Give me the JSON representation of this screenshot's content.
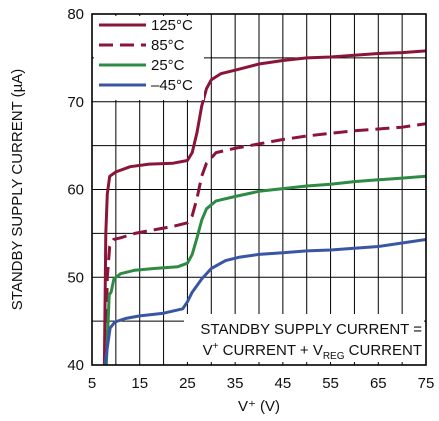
{
  "chart_data": {
    "type": "line",
    "xlabel": "V⁺ (V)",
    "ylabel": "STANDBY SUPPLY CURRENT (µA)",
    "xlim": [
      5,
      75
    ],
    "ylim": [
      40,
      80
    ],
    "xticks": [
      "5",
      "15",
      "25",
      "35",
      "45",
      "55",
      "65",
      "75"
    ],
    "yticks": [
      "40",
      "50",
      "60",
      "70",
      "80"
    ],
    "grid": true,
    "legend_position": "top-left",
    "annotation": {
      "line1": "STANDBY SUPPLY CURRENT =",
      "line2_part1": "V",
      "line2_sup": "+",
      "line2_part2": " CURRENT + V",
      "line2_sub": "REG",
      "line2_part3": " CURRENT"
    },
    "series": [
      {
        "name": "125°C",
        "color": "#8b1538",
        "dash": "solid",
        "points": [
          [
            7.6,
            40
          ],
          [
            7.9,
            55
          ],
          [
            8.2,
            59.5
          ],
          [
            8.7,
            61.5
          ],
          [
            10,
            62
          ],
          [
            13,
            62.6
          ],
          [
            17,
            62.9
          ],
          [
            22,
            63.0
          ],
          [
            25,
            63.3
          ],
          [
            26,
            64.2
          ],
          [
            27,
            66.5
          ],
          [
            28,
            69.5
          ],
          [
            29,
            71.5
          ],
          [
            30,
            72.5
          ],
          [
            32,
            73.2
          ],
          [
            35,
            73.6
          ],
          [
            40,
            74.3
          ],
          [
            45,
            74.7
          ],
          [
            50,
            75.0
          ],
          [
            55,
            75.1
          ],
          [
            60,
            75.3
          ],
          [
            65,
            75.5
          ],
          [
            70,
            75.6
          ],
          [
            75,
            75.8
          ]
        ]
      },
      {
        "name": "85°C",
        "color": "#8b1538",
        "dash": "dashed",
        "points": [
          [
            7.8,
            40
          ],
          [
            8.2,
            50
          ],
          [
            8.7,
            53.5
          ],
          [
            9.5,
            54.3
          ],
          [
            11,
            54.5
          ],
          [
            14,
            55.0
          ],
          [
            17,
            55.3
          ],
          [
            22,
            55.8
          ],
          [
            25,
            56.2
          ],
          [
            26,
            57.0
          ],
          [
            27,
            59.0
          ],
          [
            28,
            61.5
          ],
          [
            29,
            63.0
          ],
          [
            31,
            64.2
          ],
          [
            35,
            64.7
          ],
          [
            40,
            65.2
          ],
          [
            45,
            65.7
          ],
          [
            50,
            66.1
          ],
          [
            55,
            66.4
          ],
          [
            60,
            66.7
          ],
          [
            65,
            66.9
          ],
          [
            70,
            67.1
          ],
          [
            75,
            67.5
          ]
        ]
      },
      {
        "name": "25°C",
        "color": "#2e8b45",
        "dash": "solid",
        "points": [
          [
            8.0,
            40
          ],
          [
            8.6,
            48
          ],
          [
            9.0,
            48.3
          ],
          [
            9.6,
            49.8
          ],
          [
            11,
            50.4
          ],
          [
            14,
            50.8
          ],
          [
            18,
            51.0
          ],
          [
            23,
            51.2
          ],
          [
            25,
            51.6
          ],
          [
            26,
            52.6
          ],
          [
            27,
            54.5
          ],
          [
            28,
            56.5
          ],
          [
            29,
            57.8
          ],
          [
            31,
            58.7
          ],
          [
            35,
            59.2
          ],
          [
            40,
            59.8
          ],
          [
            45,
            60.1
          ],
          [
            50,
            60.4
          ],
          [
            55,
            60.6
          ],
          [
            60,
            60.9
          ],
          [
            65,
            61.1
          ],
          [
            70,
            61.3
          ],
          [
            75,
            61.5
          ]
        ]
      },
      {
        "name": "–45°C",
        "color": "#3a55a4",
        "dash": "solid",
        "points": [
          [
            7.6,
            39.5
          ],
          [
            8.2,
            42
          ],
          [
            8.8,
            44.2
          ],
          [
            9.8,
            44.9
          ],
          [
            12,
            45.3
          ],
          [
            15,
            45.6
          ],
          [
            20,
            45.9
          ],
          [
            24,
            46.4
          ],
          [
            25,
            47.2
          ],
          [
            26,
            48.3
          ],
          [
            28,
            49.8
          ],
          [
            30,
            51.0
          ],
          [
            33,
            51.9
          ],
          [
            36,
            52.3
          ],
          [
            40,
            52.6
          ],
          [
            45,
            52.8
          ],
          [
            50,
            53.0
          ],
          [
            55,
            53.1
          ],
          [
            60,
            53.3
          ],
          [
            65,
            53.5
          ],
          [
            70,
            53.9
          ],
          [
            75,
            54.3
          ]
        ]
      }
    ]
  }
}
